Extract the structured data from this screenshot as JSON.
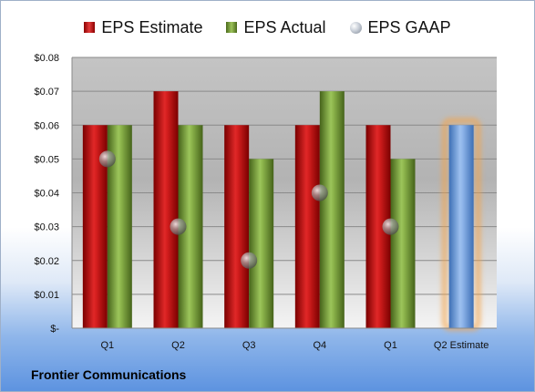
{
  "chart_data": {
    "type": "bar",
    "categories": [
      "Q1",
      "Q2",
      "Q3",
      "Q4",
      "Q1",
      "Q2 Estimate"
    ],
    "series": [
      {
        "name": "EPS Estimate",
        "values": [
          0.06,
          0.07,
          0.06,
          0.06,
          0.06,
          0.06
        ]
      },
      {
        "name": "EPS Actual",
        "values": [
          0.06,
          0.06,
          0.05,
          0.07,
          0.05,
          null
        ]
      },
      {
        "name": "EPS GAAP",
        "values": [
          0.05,
          0.03,
          0.02,
          0.04,
          0.03,
          null
        ]
      }
    ],
    "ylim": [
      0,
      0.08
    ],
    "yticks": [
      0,
      0.01,
      0.02,
      0.03,
      0.04,
      0.05,
      0.06,
      0.07,
      0.08
    ],
    "ytick_labels": [
      "$-",
      "$0.01",
      "$0.02",
      "$0.03",
      "$0.04",
      "$0.05",
      "$0.06",
      "$0.07",
      "$0.08"
    ],
    "grid": true,
    "legend_position": "top",
    "colors": {
      "estimate": "#c81e1e",
      "actual": "#7aa33b",
      "gaap": "#9aa3ad",
      "forecast": "#6e9fe0",
      "forecast_glow": "#f5a347"
    }
  },
  "legend": {
    "estimate": "EPS Estimate",
    "actual": "EPS Actual",
    "gaap": "EPS GAAP"
  },
  "company": "Frontier Communications"
}
